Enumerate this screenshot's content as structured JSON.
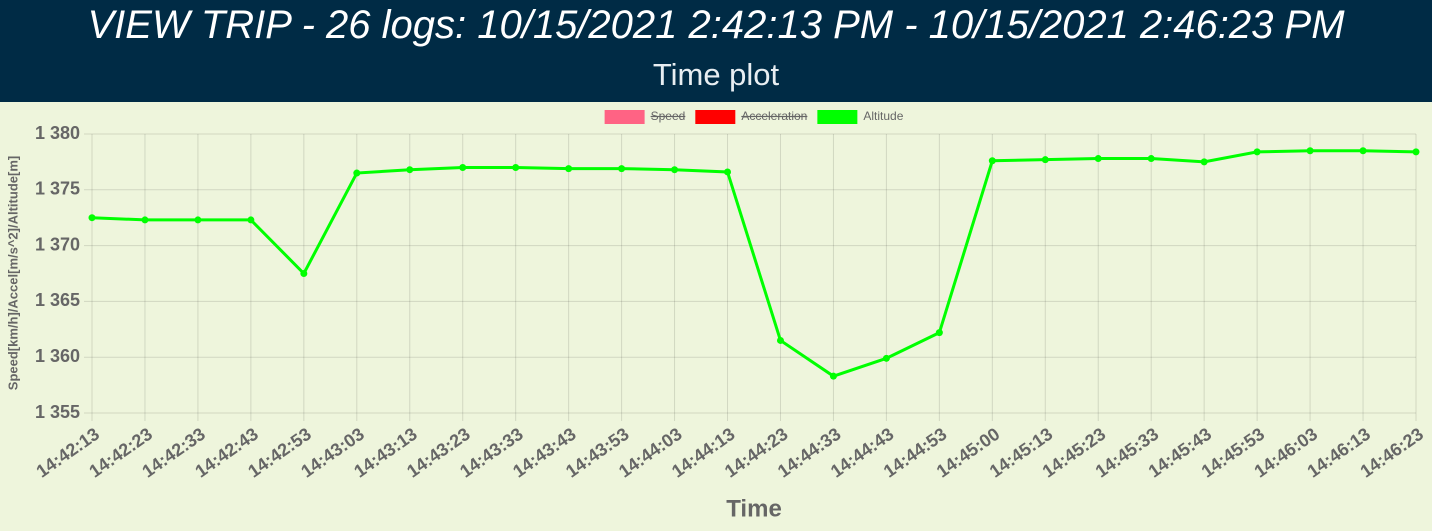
{
  "header": {
    "title": "VIEW TRIP - 26 logs: 10/15/2021 2:42:13 PM - 10/15/2021 2:46:23 PM",
    "subtitle": "Time plot"
  },
  "chart_data": {
    "type": "line",
    "x_label": "Time",
    "y_label": "Speed[km/h]/Accel[m/s^2]/Altitude[m]",
    "categories": [
      "14:42:13",
      "14:42:23",
      "14:42:33",
      "14:42:43",
      "14:42:53",
      "14:43:03",
      "14:43:13",
      "14:43:23",
      "14:43:33",
      "14:43:43",
      "14:43:53",
      "14:44:03",
      "14:44:13",
      "14:44:23",
      "14:44:33",
      "14:44:43",
      "14:44:53",
      "14:45:00",
      "14:45:13",
      "14:45:23",
      "14:45:33",
      "14:45:43",
      "14:45:53",
      "14:46:03",
      "14:46:13",
      "14:46:23"
    ],
    "series": [
      {
        "name": "Speed",
        "color": "#ff6384",
        "hidden": true
      },
      {
        "name": "Acceleration",
        "color": "#ff0000",
        "hidden": true
      },
      {
        "name": "Altitude",
        "color": "#00ff00",
        "values": [
          1372.5,
          1372.3,
          1372.3,
          1372.3,
          1367.5,
          1376.5,
          1376.8,
          1377.0,
          1377.0,
          1376.9,
          1376.9,
          1376.8,
          1376.6,
          1361.5,
          1358.3,
          1359.9,
          1362.2,
          1377.6,
          1377.7,
          1377.8,
          1377.8,
          1377.5,
          1378.4,
          1378.5,
          1378.5,
          1378.4
        ]
      }
    ],
    "ylim": [
      1355,
      1380
    ],
    "yticks": [
      {
        "value": 1355,
        "label": "1 355"
      },
      {
        "value": 1360,
        "label": "1 360"
      },
      {
        "value": 1365,
        "label": "1 365"
      },
      {
        "value": 1370,
        "label": "1 370"
      },
      {
        "value": 1375,
        "label": "1 375"
      },
      {
        "value": 1380,
        "label": "1 380"
      }
    ],
    "grid": true,
    "legend": "top"
  }
}
